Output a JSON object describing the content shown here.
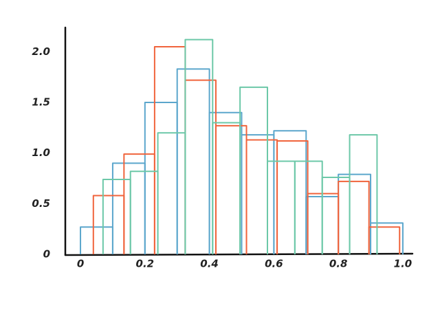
{
  "chart_data": {
    "type": "histogram",
    "xlim": [
      -0.047,
      1.03
    ],
    "ylim": [
      0,
      2.24
    ],
    "xticks": [
      0,
      0.2,
      0.4,
      0.6,
      0.8,
      {
        "value": 1,
        "label": "1.0"
      }
    ],
    "yticks": [
      0,
      0.5,
      {
        "value": 1,
        "label": "1.0"
      },
      1.5,
      {
        "value": 2,
        "label": "2.0"
      }
    ],
    "grid": false,
    "series": [
      {
        "color": "#5ba6cc",
        "bins": [
          0,
          0.1,
          0.2,
          0.3,
          0.4,
          0.5,
          0.6,
          0.7,
          0.8,
          0.9,
          1.0
        ],
        "values": [
          0.27,
          0.9,
          1.5,
          1.83,
          1.4,
          1.18,
          1.22,
          0.57,
          0.79,
          0.31
        ]
      },
      {
        "color": "#f0643c",
        "bins": [
          0.04,
          0.135,
          0.23,
          0.325,
          0.42,
          0.515,
          0.61,
          0.705,
          0.8,
          0.895,
          0.99
        ],
        "values": [
          0.58,
          0.99,
          2.05,
          1.72,
          1.27,
          1.13,
          1.12,
          0.6,
          0.72,
          0.27
        ]
      },
      {
        "color": "#6cc8a8",
        "bins": [
          0.07,
          0.155,
          0.24,
          0.325,
          0.41,
          0.495,
          0.58,
          0.665,
          0.75,
          0.835,
          0.92
        ],
        "values": [
          0.74,
          0.82,
          1.2,
          2.12,
          1.3,
          1.65,
          0.92,
          0.92,
          0.76,
          1.18
        ]
      }
    ]
  }
}
